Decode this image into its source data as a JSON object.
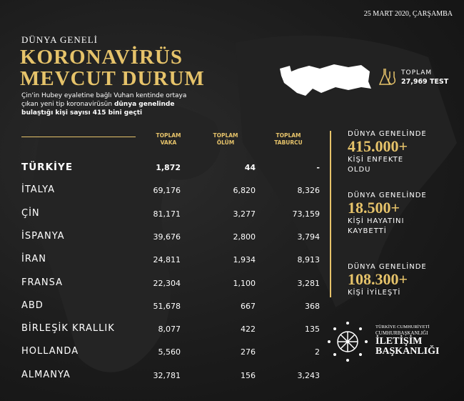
{
  "date": "25 MART 2020, ÇARŞAMBA",
  "header": {
    "kicker": "DÜNYA GENELİ",
    "title_lines": [
      "KORONAVİRÜS",
      "MEVCUT DURUM"
    ],
    "description": {
      "normal": "Çin'in Hubey eyaletine bağlı Vuhan kentinde ortaya çıkan yeni tip koronavirüsün",
      "bold": "dünya genelinde bulaştığı kişi sayısı 415 bini geçti"
    }
  },
  "test": {
    "label": "TOPLAM",
    "value": "27,969 TEST"
  },
  "table": {
    "columns": [
      [
        "TOPLAM",
        "VAKA"
      ],
      [
        "TOPLAM",
        "ÖLÜM"
      ],
      [
        "TOPLAM",
        "TABURCU"
      ]
    ],
    "rows": [
      [
        "TÜRKİYE",
        "1,872",
        "44",
        "-"
      ],
      [
        "İTALYA",
        "69,176",
        "6,820",
        "8,326"
      ],
      [
        "ÇİN",
        "81,171",
        "3,277",
        "73,159"
      ],
      [
        "İSPANYA",
        "39,676",
        "2,800",
        "3,794"
      ],
      [
        "İRAN",
        "24,811",
        "1,934",
        "8,913"
      ],
      [
        "FRANSA",
        "22,304",
        "1,100",
        "3,281"
      ],
      [
        "ABD",
        "51,678",
        "667",
        "368"
      ],
      [
        "BİRLEŞİK KRALLIK",
        "8,077",
        "422",
        "135"
      ],
      [
        "HOLLANDA",
        "5,560",
        "276",
        "2"
      ],
      [
        "ALMANYA",
        "32,781",
        "156",
        "3,243"
      ]
    ]
  },
  "stats": [
    {
      "label": "DÜNYA GENELİNDE",
      "value": "415.000+",
      "caption": "KİŞİ ENFEKTE OLDU"
    },
    {
      "label": "DÜNYA GENELİNDE",
      "value": "18.500+",
      "caption": "KİŞİ HAYATINI KAYBETTİ"
    },
    {
      "label": "DÜNYA GENELİNDE",
      "value": "108.300+",
      "caption": "KİŞİ İYİLEŞTİ"
    }
  ],
  "logo": [
    "TÜRKİYE CUMHURİYETİ",
    "CUMHURBAŞKANLIĞI",
    "İLETİŞİM",
    "BAŞKANLIĞI"
  ]
}
